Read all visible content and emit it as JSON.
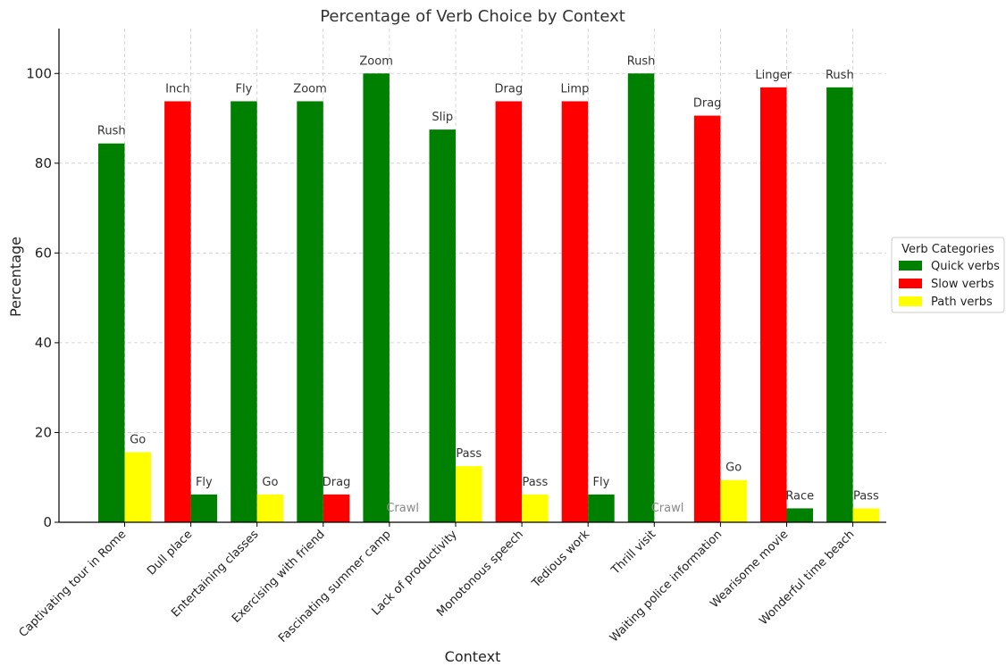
{
  "chart_data": {
    "type": "bar",
    "title": "Percentage of Verb Choice by Context",
    "xlabel": "Context",
    "ylabel": "Percentage",
    "ylim": [
      0,
      110
    ],
    "yticks": [
      0,
      20,
      40,
      60,
      80,
      100
    ],
    "grid": true,
    "legend": {
      "title": "Verb Categories",
      "placement": "center-right",
      "entries": [
        {
          "name": "Quick verbs",
          "color": "#008000"
        },
        {
          "name": "Slow verbs",
          "color": "#ff0000"
        },
        {
          "name": "Path verbs",
          "color": "#ffff00"
        }
      ]
    },
    "categories": [
      "Captivating tour in Rome",
      "Dull place",
      "Entertaining classes",
      "Exercising with friend",
      "Fascinating summer camp",
      "Lack of productivity",
      "Monotonous speech",
      "Tedious work",
      "Thrill visit",
      "Waiting police information",
      "Wearisome movie",
      "Wonderful time beach"
    ],
    "bars": [
      [
        {
          "category": "Quick verbs",
          "value": 84.4,
          "label": "Rush"
        },
        {
          "category": "Path verbs",
          "value": 15.6,
          "label": "Go"
        }
      ],
      [
        {
          "category": "Slow verbs",
          "value": 93.8,
          "label": "Inch"
        },
        {
          "category": "Quick verbs",
          "value": 6.2,
          "label": "Fly"
        }
      ],
      [
        {
          "category": "Quick verbs",
          "value": 93.8,
          "label": "Fly"
        },
        {
          "category": "Path verbs",
          "value": 6.2,
          "label": "Go"
        }
      ],
      [
        {
          "category": "Quick verbs",
          "value": 93.8,
          "label": "Zoom"
        },
        {
          "category": "Slow verbs",
          "value": 6.2,
          "label": "Drag"
        }
      ],
      [
        {
          "category": "Quick verbs",
          "value": 100,
          "label": "Zoom"
        },
        {
          "category": "Slow verbs",
          "value": 0,
          "label": "Crawl"
        }
      ],
      [
        {
          "category": "Quick verbs",
          "value": 87.5,
          "label": "Slip"
        },
        {
          "category": "Path verbs",
          "value": 12.5,
          "label": "Pass"
        }
      ],
      [
        {
          "category": "Slow verbs",
          "value": 93.8,
          "label": "Drag"
        },
        {
          "category": "Path verbs",
          "value": 6.2,
          "label": "Pass"
        }
      ],
      [
        {
          "category": "Slow verbs",
          "value": 93.8,
          "label": "Limp"
        },
        {
          "category": "Quick verbs",
          "value": 6.2,
          "label": "Fly"
        }
      ],
      [
        {
          "category": "Quick verbs",
          "value": 100,
          "label": "Rush"
        },
        {
          "category": "Slow verbs",
          "value": 0,
          "label": "Crawl"
        }
      ],
      [
        {
          "category": "Slow verbs",
          "value": 90.6,
          "label": "Drag"
        },
        {
          "category": "Path verbs",
          "value": 9.4,
          "label": "Go"
        }
      ],
      [
        {
          "category": "Slow verbs",
          "value": 96.9,
          "label": "Linger"
        },
        {
          "category": "Quick verbs",
          "value": 3.1,
          "label": "Race"
        }
      ],
      [
        {
          "category": "Quick verbs",
          "value": 96.9,
          "label": "Rush"
        },
        {
          "category": "Path verbs",
          "value": 3.1,
          "label": "Pass"
        }
      ]
    ]
  }
}
